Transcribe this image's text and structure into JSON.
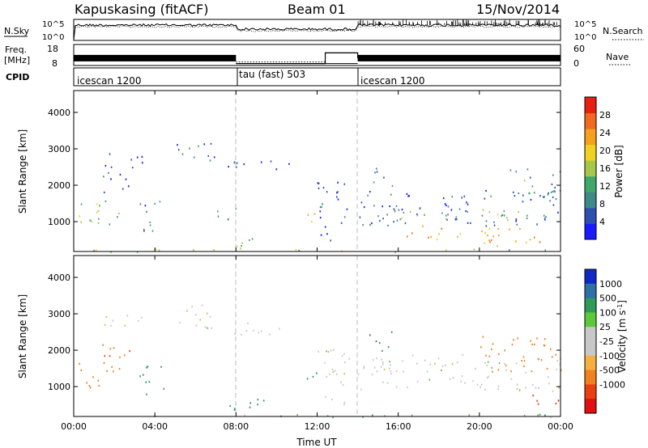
{
  "header": {
    "station": "Kapuskasing (fitACF)",
    "beam": "Beam 01",
    "date": "15/Nov/2014"
  },
  "chart_data": [
    {
      "type": "line",
      "panel": "noise",
      "left_label": "N.Sky",
      "right_label": "N.Search",
      "left_ticks": [
        "10^5",
        "10^0"
      ],
      "right_ticks": [
        "10^5",
        "10^0"
      ],
      "x": [
        "00:00",
        "04:00",
        "08:00",
        "12:00",
        "16:00",
        "20:00",
        "00:00"
      ]
    },
    {
      "type": "line",
      "panel": "frequency",
      "left_label": "Freq.",
      "left_unit": "[MHz]",
      "right_label": "Nave",
      "left_ticks": [
        18,
        8
      ],
      "right_ticks": [
        60,
        0
      ],
      "segments": [
        {
          "start_h": 0,
          "end_h": 8,
          "freq_mhz": 11.5
        },
        {
          "start_h": 8,
          "end_h": 14,
          "freq_mhz": 8.9
        },
        {
          "start_h": 14,
          "end_h": 24,
          "freq_mhz": 11.5
        }
      ],
      "nave_segments": [
        {
          "start_h": 8,
          "end_h": 12.4,
          "nave": 10
        },
        {
          "start_h": 12.4,
          "end_h": 14,
          "nave": 36
        }
      ]
    },
    {
      "type": "table",
      "panel": "cpid",
      "label": "CPID",
      "programs": [
        {
          "start_h": 0,
          "end_h": 8,
          "name": "icescan 1200"
        },
        {
          "start_h": 8,
          "end_h": 14,
          "name": "tau (fast) 503"
        },
        {
          "start_h": 14,
          "end_h": 24,
          "name": "icescan 1200"
        }
      ]
    },
    {
      "type": "heatmap",
      "panel": "power",
      "ylabel": "Slant Range [km]",
      "ylim": [
        180,
        4600
      ],
      "yticks": [
        1000,
        2000,
        3000,
        4000
      ],
      "xlim_h": [
        0,
        24
      ],
      "colorbar_label": "Power [dB]",
      "colorbar_ticks": [
        4,
        8,
        12,
        16,
        20,
        24,
        28
      ],
      "colorbar_range": [
        0,
        32
      ],
      "colors": [
        "#1a1aff",
        "#2d4fb0",
        "#3f8a88",
        "#3fa86a",
        "#a6c84a",
        "#f0d020",
        "#f6a020",
        "#f06a20",
        "#e82010"
      ],
      "patches": [
        {
          "t": [
            0.2,
            2.3
          ],
          "r": [
            950,
            1700
          ],
          "level": 0.45
        },
        {
          "t": [
            0.3,
            1.2
          ],
          "r": [
            1200,
            1500
          ],
          "level": 0.55
        },
        {
          "t": [
            1.2,
            2.8
          ],
          "r": [
            1800,
            2400
          ],
          "level": 0.15
        },
        {
          "t": [
            1.5,
            3.5
          ],
          "r": [
            2500,
            3000
          ],
          "level": 0.1
        },
        {
          "t": [
            3.2,
            4.5
          ],
          "r": [
            700,
            1600
          ],
          "level": 0.25
        },
        {
          "t": [
            5.0,
            6.8
          ],
          "r": [
            2600,
            3300
          ],
          "level": 0.2
        },
        {
          "t": [
            7.0,
            8.0
          ],
          "r": [
            900,
            1400
          ],
          "level": 0.2
        },
        {
          "t": [
            6.4,
            8.8
          ],
          "r": [
            2500,
            2800
          ],
          "level": 0.15
        },
        {
          "t": [
            8.3,
            10.8
          ],
          "r": [
            2450,
            2700
          ],
          "level": 0.1
        },
        {
          "t": [
            7.5,
            9.0
          ],
          "r": [
            250,
            700
          ],
          "level": 0.4
        },
        {
          "t": [
            11.3,
            12.0
          ],
          "r": [
            900,
            1500
          ],
          "level": 0.65
        },
        {
          "t": [
            12.0,
            13.6
          ],
          "r": [
            500,
            2200
          ],
          "level": 0.15
        },
        {
          "t": [
            14.0,
            24.0
          ],
          "r": [
            900,
            1900
          ],
          "level": 0.18
        },
        {
          "t": [
            15.5,
            23.5
          ],
          "r": [
            1050,
            1400
          ],
          "level": 0.4
        },
        {
          "t": [
            16.0,
            22.0
          ],
          "r": [
            500,
            900
          ],
          "level": 0.65
        },
        {
          "t": [
            19.5,
            23.5
          ],
          "r": [
            350,
            650
          ],
          "level": 0.72
        },
        {
          "t": [
            14.5,
            15.7
          ],
          "r": [
            2000,
            2600
          ],
          "level": 0.3
        },
        {
          "t": [
            21.5,
            24.0
          ],
          "r": [
            1700,
            2500
          ],
          "level": 0.3
        },
        {
          "t": [
            0.0,
            24.0
          ],
          "r": [
            180,
            260
          ],
          "level": 0.5
        }
      ]
    },
    {
      "type": "heatmap",
      "panel": "velocity",
      "ylabel": "Slant Range [km]",
      "xlabel": "Time UT",
      "ylim": [
        180,
        4600
      ],
      "yticks": [
        1000,
        2000,
        3000,
        4000
      ],
      "xlim_h": [
        0,
        24
      ],
      "xtick_labels": [
        "00:00",
        "04:00",
        "08:00",
        "12:00",
        "16:00",
        "20:00",
        "00:00"
      ],
      "colorbar_label": "Velocity [m s",
      "colorbar_label_exp": "-1",
      "colorbar_label_tail": "]",
      "colorbar_ticks": [
        "1000",
        "500",
        "100",
        "25",
        "-25",
        "-100",
        "-500",
        "-1000"
      ],
      "colors": [
        "#1028c8",
        "#2e70a8",
        "#2f9a5a",
        "#5cc83c",
        "#c8c8c8",
        "#c8c8c8",
        "#f4b040",
        "#f08020",
        "#e84010",
        "#e01010"
      ],
      "patches": [
        {
          "t": [
            0.2,
            2.3
          ],
          "r": [
            950,
            1700
          ],
          "v": -100
        },
        {
          "t": [
            1.2,
            2.8
          ],
          "r": [
            1800,
            2400
          ],
          "v": -300
        },
        {
          "t": [
            1.5,
            3.5
          ],
          "r": [
            2500,
            3000
          ],
          "v": -25
        },
        {
          "t": [
            3.2,
            4.5
          ],
          "r": [
            700,
            1600
          ],
          "v": 100
        },
        {
          "t": [
            5.0,
            6.8
          ],
          "r": [
            2600,
            3300
          ],
          "v": 0
        },
        {
          "t": [
            6.4,
            10.8
          ],
          "r": [
            2450,
            2800
          ],
          "v": 0
        },
        {
          "t": [
            7.5,
            9.5
          ],
          "r": [
            250,
            700
          ],
          "v": 150
        },
        {
          "t": [
            11.3,
            12.0
          ],
          "r": [
            900,
            1500
          ],
          "v": 200
        },
        {
          "t": [
            12.0,
            13.6
          ],
          "r": [
            500,
            2200
          ],
          "v": 0
        },
        {
          "t": [
            14.0,
            24.0
          ],
          "r": [
            900,
            1900
          ],
          "v": 0
        },
        {
          "t": [
            14.5,
            15.7
          ],
          "r": [
            2000,
            2600
          ],
          "v": 300
        },
        {
          "t": [
            22.5,
            24.0
          ],
          "r": [
            500,
            900
          ],
          "v": -600
        },
        {
          "t": [
            20.0,
            24.0
          ],
          "r": [
            1400,
            2400
          ],
          "v": -150
        },
        {
          "t": [
            0.0,
            24.0
          ],
          "r": [
            180,
            260
          ],
          "v": 50
        }
      ]
    }
  ]
}
